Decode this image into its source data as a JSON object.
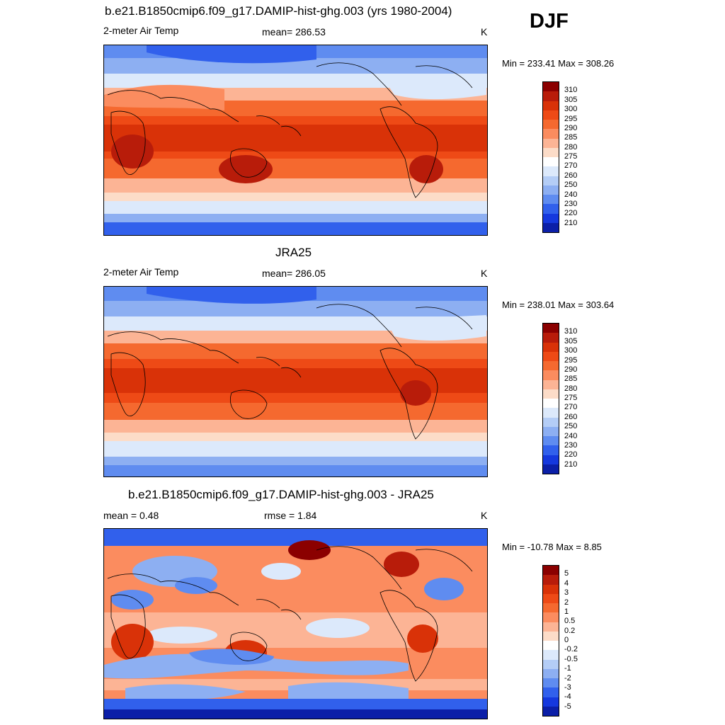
{
  "season": "DJF",
  "panels": [
    {
      "id": "model",
      "title": "b.e21.B1850cmip6.f09_g17.DAMIP-hist-ghg.003 (yrs 1980-2004)",
      "left_label": "2-meter Air Temp",
      "center_label": "mean= 286.53",
      "units": "K",
      "minmax": "Min = 233.41 Max = 308.26",
      "levels": [
        "310",
        "305",
        "300",
        "295",
        "290",
        "285",
        "280",
        "275",
        "270",
        "260",
        "250",
        "240",
        "230",
        "220",
        "210"
      ],
      "colors": [
        "#8b0000",
        "#b81c0a",
        "#d93208",
        "#ee4a16",
        "#f5692f",
        "#fb8c5f",
        "#fcb495",
        "#fcdcc8",
        "#ffffff",
        "#dce9fb",
        "#b4cdf6",
        "#8daff2",
        "#5f8cf0",
        "#3160ec",
        "#1538de",
        "#0b1fa8"
      ]
    },
    {
      "id": "obs",
      "title": "JRA25",
      "left_label": "2-meter Air Temp",
      "center_label": "mean= 286.05",
      "units": "K",
      "minmax": "Min = 238.01 Max = 303.64",
      "levels": [
        "310",
        "305",
        "300",
        "295",
        "290",
        "285",
        "280",
        "275",
        "270",
        "260",
        "250",
        "240",
        "230",
        "220",
        "210"
      ],
      "colors": [
        "#8b0000",
        "#b81c0a",
        "#d93208",
        "#ee4a16",
        "#f5692f",
        "#fb8c5f",
        "#fcb495",
        "#fcdcc8",
        "#ffffff",
        "#dce9fb",
        "#b4cdf6",
        "#8daff2",
        "#5f8cf0",
        "#3160ec",
        "#1538de",
        "#0b1fa8"
      ]
    },
    {
      "id": "diff",
      "title": "b.e21.B1850cmip6.f09_g17.DAMIP-hist-ghg.003 - JRA25",
      "left_label": "mean =   0.48",
      "center_label": "rmse =   1.84",
      "units": "K",
      "minmax": "Min = -10.78 Max =   8.85",
      "levels": [
        "5",
        "4",
        "3",
        "2",
        "1",
        "0.5",
        "0.2",
        "0",
        "-0.2",
        "-0.5",
        "-1",
        "-2",
        "-3",
        "-4",
        "-5"
      ],
      "colors": [
        "#8b0000",
        "#b81c0a",
        "#d93208",
        "#ee4a16",
        "#f5692f",
        "#fb8c5f",
        "#fcb495",
        "#fcdcc8",
        "#ffffff",
        "#dce9fb",
        "#b4cdf6",
        "#8daff2",
        "#5f8cf0",
        "#3160ec",
        "#1538de",
        "#0b1fa8"
      ]
    }
  ]
}
